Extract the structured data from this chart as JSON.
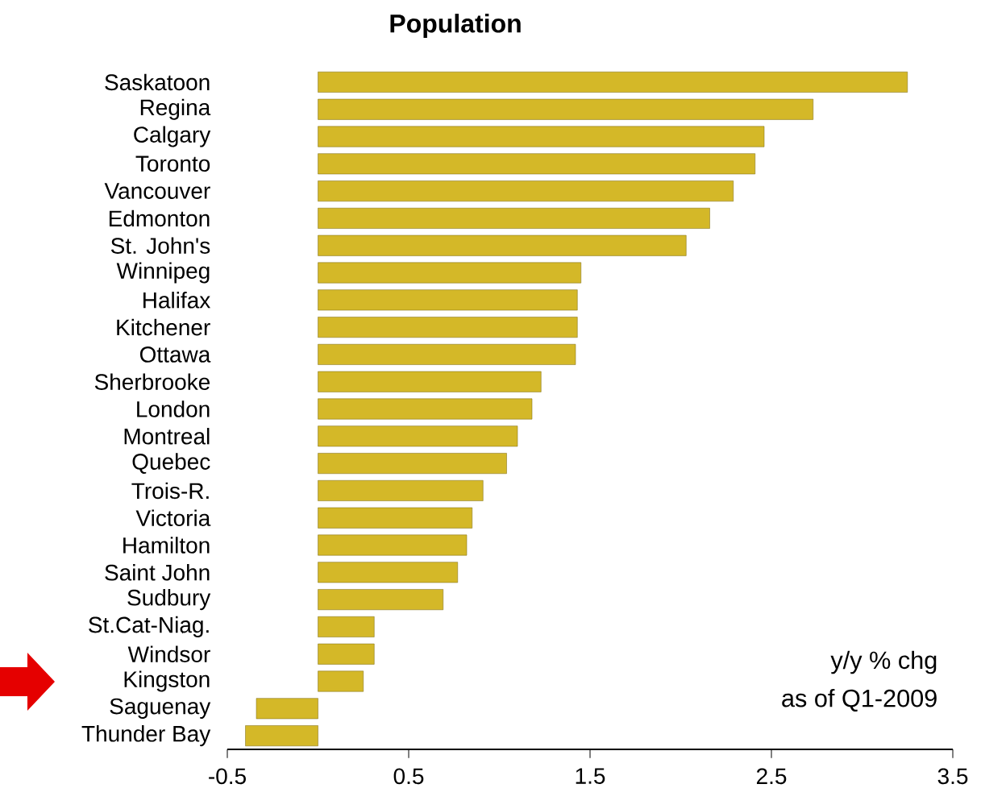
{
  "chart_data": {
    "type": "bar",
    "orientation": "horizontal",
    "title": "Population",
    "categories": [
      "Saskatoon",
      "Regina",
      "Calgary",
      "Toronto",
      "Vancouver",
      "Edmonton",
      "St. John's",
      "Winnipeg",
      "Halifax",
      "Kitchener",
      "Ottawa",
      "Sherbrooke",
      "London",
      "Montreal",
      "Quebec",
      "Trois-R.",
      "Victoria",
      "Hamilton",
      "Saint John",
      "Sudbury",
      "St.Cat-Niag.",
      "Windsor",
      "Kingston",
      "Saguenay",
      "Thunder Bay"
    ],
    "values": [
      3.25,
      2.73,
      2.46,
      2.41,
      2.29,
      2.16,
      2.03,
      1.45,
      1.43,
      1.43,
      1.42,
      1.23,
      1.18,
      1.1,
      1.04,
      0.91,
      0.85,
      0.82,
      0.77,
      0.69,
      0.31,
      0.31,
      0.25,
      -0.34,
      -0.4
    ],
    "color": "#d4b828",
    "xlim": [
      -0.5,
      3.5
    ],
    "xticks": [
      -0.5,
      0.5,
      1.5,
      2.5,
      3.5
    ],
    "annotations": [
      "y/y % chg",
      "as of Q1-2009"
    ],
    "grid": false
  }
}
